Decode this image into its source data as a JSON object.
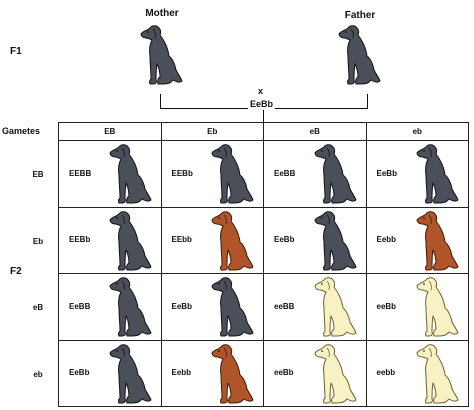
{
  "parents": {
    "mother_label": "Mother",
    "father_label": "Father",
    "cross_symbol": "x",
    "parent_genotype": "EeBb"
  },
  "generations": {
    "f1": "F1",
    "f2": "F2"
  },
  "gametes_label": "Gametes",
  "columns": [
    "EB",
    "Eb",
    "eB",
    "eb"
  ],
  "rows": [
    {
      "label": "EB",
      "cells": [
        {
          "genotype": "EEBB",
          "coat": "black"
        },
        {
          "genotype": "EEBb",
          "coat": "black"
        },
        {
          "genotype": "EeBB",
          "coat": "black"
        },
        {
          "genotype": "EeBb",
          "coat": "black"
        }
      ]
    },
    {
      "label": "Eb",
      "cells": [
        {
          "genotype": "EEBb",
          "coat": "black"
        },
        {
          "genotype": "EEbb",
          "coat": "chocolate"
        },
        {
          "genotype": "EeBb",
          "coat": "black"
        },
        {
          "genotype": "Eebb",
          "coat": "chocolate"
        }
      ]
    },
    {
      "label": "eB",
      "cells": [
        {
          "genotype": "EeBB",
          "coat": "black"
        },
        {
          "genotype": "EeBb",
          "coat": "black"
        },
        {
          "genotype": "eeBB",
          "coat": "yellow"
        },
        {
          "genotype": "eeBb",
          "coat": "yellow"
        }
      ]
    },
    {
      "label": "eb",
      "cells": [
        {
          "genotype": "EeBb",
          "coat": "black"
        },
        {
          "genotype": "Eebb",
          "coat": "chocolate"
        },
        {
          "genotype": "eeBb",
          "coat": "yellow"
        },
        {
          "genotype": "eebb",
          "coat": "yellow"
        }
      ]
    }
  ],
  "colors": {
    "black": "#4a4f59",
    "black_outline": "#111111",
    "chocolate": "#b0552a",
    "chocolate_outline": "#3a1a0a",
    "yellow": "#f7f1c4",
    "yellow_outline": "#6b6233"
  }
}
